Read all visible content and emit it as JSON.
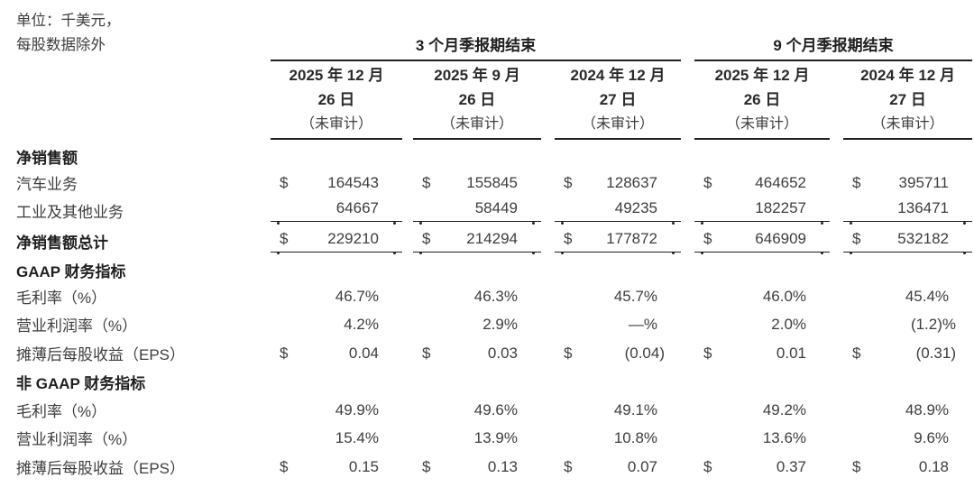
{
  "colors": {
    "background": "#ffffff",
    "text": "#3d3d3d",
    "heading_text": "#1f1f1f",
    "rule": "#1f1f1f"
  },
  "unit_note": {
    "line1": "单位：千美元，",
    "line2": "每股数据除外"
  },
  "table": {
    "groups": [
      {
        "label": "3 个月季报期结束"
      },
      {
        "label": "9 个月季报期结束"
      }
    ],
    "columns": [
      {
        "date_line1": "2025 年 12 月",
        "date_line2": "26 日",
        "audit": "（未审计）"
      },
      {
        "date_line1": "2025 年 9 月",
        "date_line2": "26 日",
        "audit": "（未审计）"
      },
      {
        "date_line1": "2024 年 12 月",
        "date_line2": "27 日",
        "audit": "（未审计）"
      },
      {
        "date_line1": "2025 年 12 月",
        "date_line2": "26 日",
        "audit": "（未审计）"
      },
      {
        "date_line1": "2024 年 12 月",
        "date_line2": "27 日",
        "audit": "（未审计）"
      }
    ],
    "rows": [
      {
        "label": "净销售额",
        "type": "section"
      },
      {
        "label": "汽车业务",
        "type": "data",
        "dollars": [
          "$",
          "$",
          "$",
          "$",
          "$"
        ],
        "values": [
          "164543",
          "155845",
          "128637",
          "464652",
          "395711"
        ]
      },
      {
        "label": "工业及其他业务",
        "type": "data-underline",
        "values": [
          "64667",
          "58449",
          "49235",
          "182257",
          "136471"
        ]
      },
      {
        "label": "净销售额总计",
        "type": "total-underline",
        "dollars": [
          "$",
          "$",
          "$",
          "$",
          "$"
        ],
        "values": [
          "229210",
          "214294",
          "177872",
          "646909",
          "532182"
        ]
      },
      {
        "label": "GAAP 财务指标",
        "type": "section"
      },
      {
        "label": "毛利率（%）",
        "type": "data",
        "values": [
          "46.7%",
          "46.3%",
          "45.7%",
          "46.0%",
          "45.4%"
        ]
      },
      {
        "label": "营业利润率（%）",
        "type": "data",
        "values": [
          "4.2%",
          "2.9%",
          "—%",
          "2.0%",
          "(1.2)%"
        ]
      },
      {
        "label": "摊薄后每股收益（EPS）",
        "type": "data",
        "dollars": [
          "$",
          "$",
          "$",
          "$",
          "$"
        ],
        "values": [
          "0.04",
          "0.03",
          "(0.04)",
          "0.01",
          "(0.31)"
        ]
      },
      {
        "label": "非 GAAP 财务指标",
        "type": "section"
      },
      {
        "label": "毛利率（%）",
        "type": "data",
        "values": [
          "49.9%",
          "49.6%",
          "49.1%",
          "49.2%",
          "48.9%"
        ]
      },
      {
        "label": "营业利润率（%）",
        "type": "data",
        "values": [
          "15.4%",
          "13.9%",
          "10.8%",
          "13.6%",
          "9.6%"
        ]
      },
      {
        "label": "摊薄后每股收益（EPS）",
        "type": "data",
        "dollars": [
          "$",
          "$",
          "$",
          "$",
          "$"
        ],
        "values": [
          "0.15",
          "0.13",
          "0.07",
          "0.37",
          "0.18"
        ]
      }
    ]
  }
}
